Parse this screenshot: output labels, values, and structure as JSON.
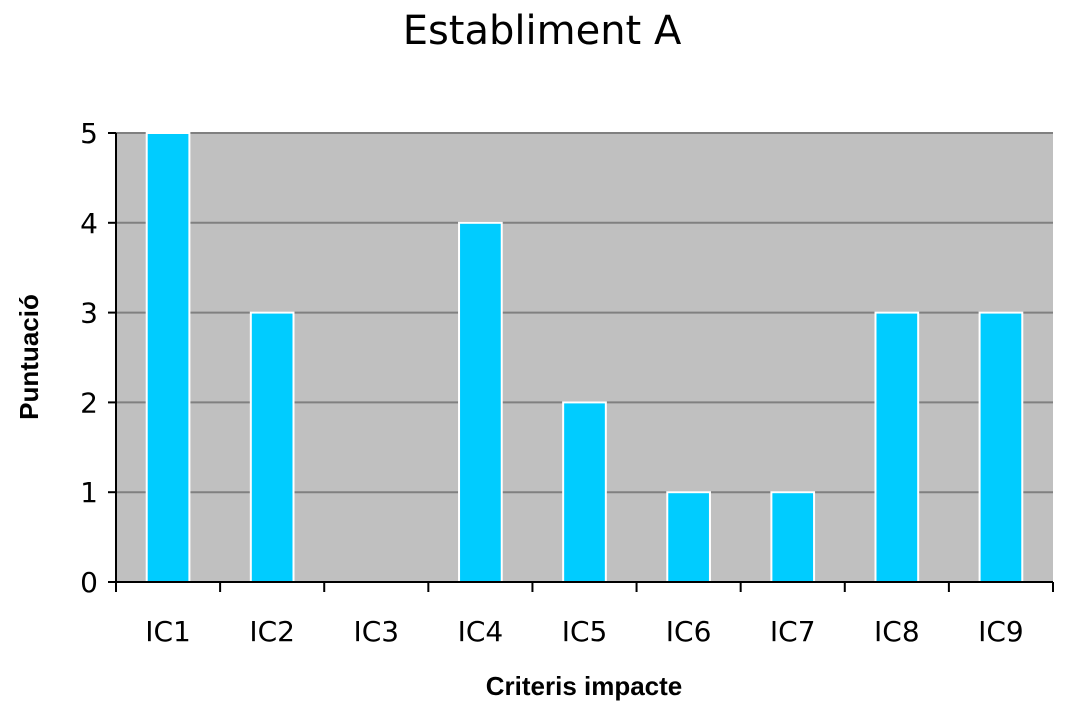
{
  "chart_data": {
    "type": "bar",
    "title": "Establiment A",
    "xlabel": "Criteris impacte",
    "ylabel": "Puntuació",
    "categories": [
      "IC1",
      "IC2",
      "IC3",
      "IC4",
      "IC5",
      "IC6",
      "IC7",
      "IC8",
      "IC9"
    ],
    "values": [
      5,
      3,
      0,
      4,
      2,
      1,
      1,
      3,
      3
    ],
    "ylim": [
      0,
      5
    ],
    "yticks": [
      "0",
      "1",
      "2",
      "3",
      "4",
      "5"
    ],
    "grid": true,
    "legend": "none",
    "colors": {
      "bar_fill": "#00CCFF",
      "bar_stroke": "#FFFFFF",
      "plot_background": "#C0C0C0",
      "gridline": "#808080",
      "axis": "#000000"
    }
  }
}
